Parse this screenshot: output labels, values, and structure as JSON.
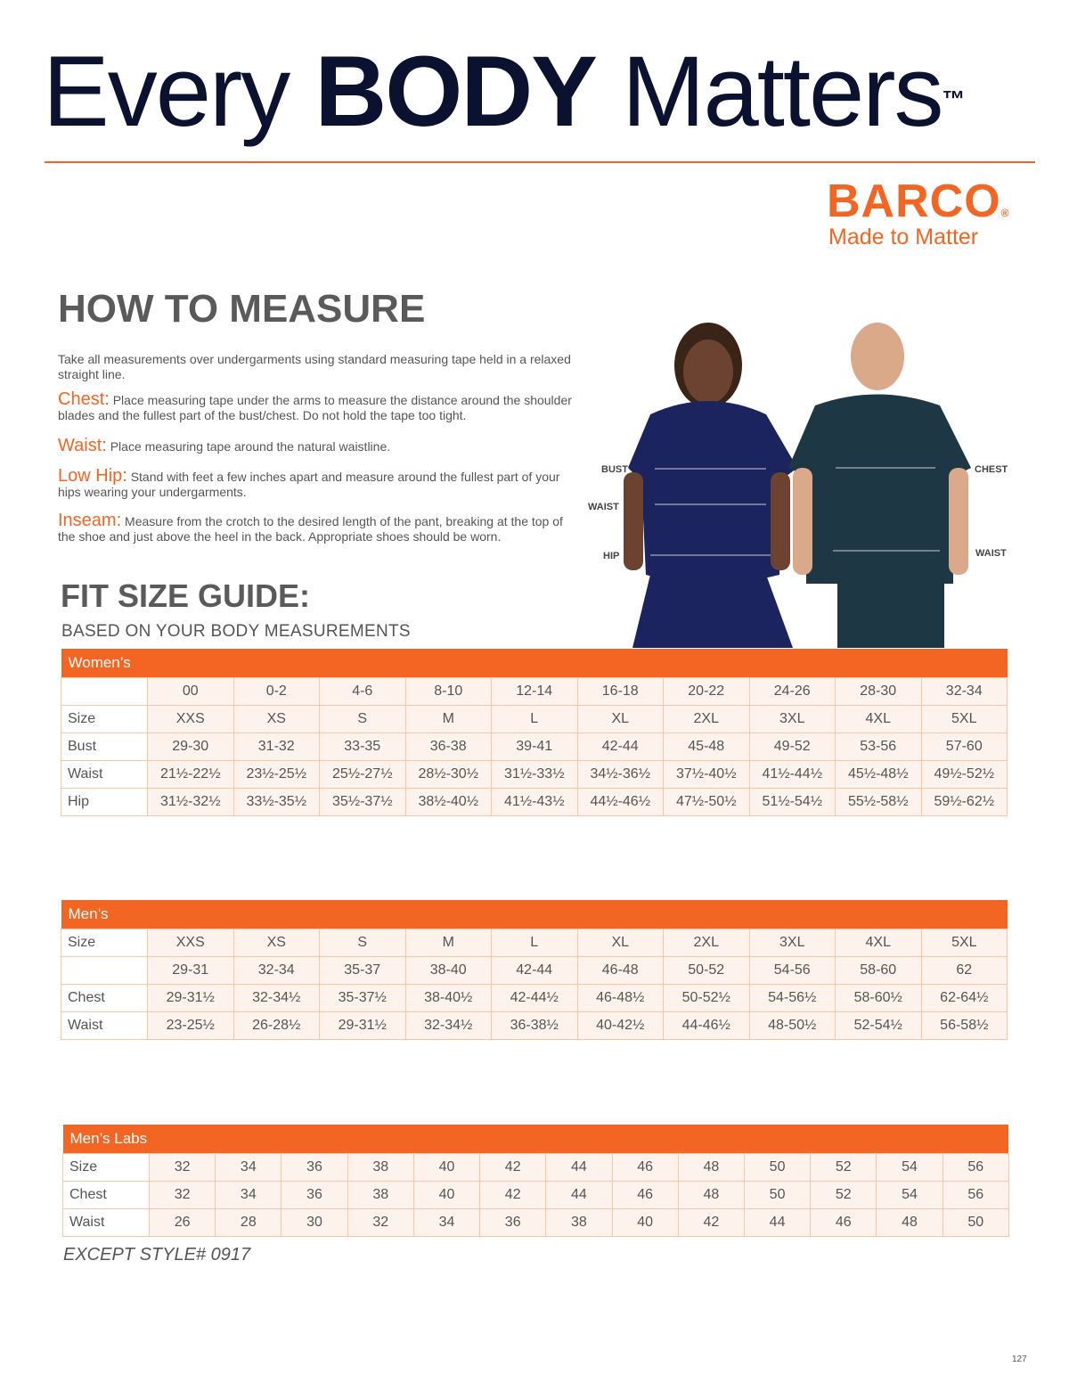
{
  "header": {
    "word1": "Every",
    "word2": "BODY",
    "word3": "Matters",
    "trademark": "™"
  },
  "brand": {
    "name": "BARCO",
    "registered": "®",
    "tagline": "Made to Matter"
  },
  "measure": {
    "heading": "HOW TO MEASURE",
    "intro": "Take all measurements over undergarments using standard measuring tape held in a relaxed straight line.",
    "items": [
      {
        "term": "Chest:",
        "text": "Place measuring tape under the arms to measure the distance around the shoulder blades and the fullest part of the bust/chest. Do not hold the tape too tight."
      },
      {
        "term": "Waist:",
        "text": "Place measuring tape around the natural waistline."
      },
      {
        "term": "Low Hip:",
        "text": "Stand with feet a few inches apart and measure around the fullest part of your hips wearing your undergarments."
      },
      {
        "term": "Inseam:",
        "text": "Measure from the crotch to the desired length of the pant, breaking at the top of the shoe and just above the heel in the back. Appropriate shoes should be worn."
      }
    ]
  },
  "figure": {
    "women_labels": [
      "BUST",
      "WAIST",
      "HIP"
    ],
    "men_labels": [
      "CHEST",
      "WAIST"
    ]
  },
  "fit": {
    "heading": "FIT SIZE GUIDE:",
    "subheading": "BASED ON YOUR BODY MEASUREMENTS"
  },
  "tables": [
    {
      "title": "Women’s",
      "rows": [
        [
          null,
          "00",
          "0-2",
          "4-6",
          "8-10",
          "12-14",
          "16-18",
          "20-22",
          "24-26",
          "28-30",
          "32-34"
        ],
        [
          "Size",
          "XXS",
          "XS",
          "S",
          "M",
          "L",
          "XL",
          "2XL",
          "3XL",
          "4XL",
          "5XL"
        ],
        [
          "Bust",
          "29-30",
          "31-32",
          "33-35",
          "36-38",
          "39-41",
          "42-44",
          "45-48",
          "49-52",
          "53-56",
          "57-60"
        ],
        [
          "Waist",
          "21½-22½",
          "23½-25½",
          "25½-27½",
          "28½-30½",
          "31½-33½",
          "34½-36½",
          "37½-40½",
          "41½-44½",
          "45½-48½",
          "49½-52½"
        ],
        [
          "Hip",
          "31½-32½",
          "33½-35½",
          "35½-37½",
          "38½-40½",
          "41½-43½",
          "44½-46½",
          "47½-50½",
          "51½-54½",
          "55½-58½",
          "59½-62½"
        ]
      ]
    },
    {
      "title": "Men’s",
      "rows": [
        [
          "Size",
          "XXS",
          "XS",
          "S",
          "M",
          "L",
          "XL",
          "2XL",
          "3XL",
          "4XL",
          "5XL"
        ],
        [
          null,
          "29-31",
          "32-34",
          "35-37",
          "38-40",
          "42-44",
          "46-48",
          "50-52",
          "54-56",
          "58-60",
          "62"
        ],
        [
          "Chest",
          "29-31½",
          "32-34½",
          "35-37½",
          "38-40½",
          "42-44½",
          "46-48½",
          "50-52½",
          "54-56½",
          "58-60½",
          "62-64½"
        ],
        [
          "Waist",
          "23-25½",
          "26-28½",
          "29-31½",
          "32-34½",
          "36-38½",
          "40-42½",
          "44-46½",
          "48-50½",
          "52-54½",
          "56-58½"
        ]
      ]
    },
    {
      "title": "Men’s Labs",
      "rows": [
        [
          "Size",
          "32",
          "34",
          "36",
          "38",
          "40",
          "42",
          "44",
          "46",
          "48",
          "50",
          "52",
          "54",
          "56"
        ],
        [
          "Chest",
          "32",
          "34",
          "36",
          "38",
          "40",
          "42",
          "44",
          "46",
          "48",
          "50",
          "52",
          "54",
          "56"
        ],
        [
          "Waist",
          "26",
          "28",
          "30",
          "32",
          "34",
          "36",
          "38",
          "40",
          "42",
          "44",
          "46",
          "48",
          "50"
        ]
      ],
      "note": "EXCEPT STYLE# 0917"
    }
  ],
  "page_number": "127"
}
